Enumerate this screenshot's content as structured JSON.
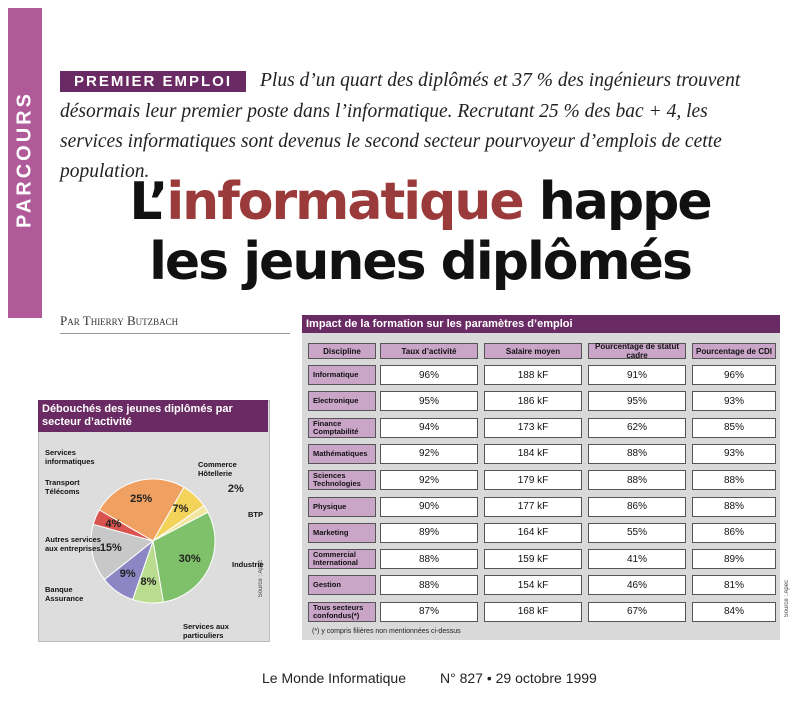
{
  "section": "PARCOURS",
  "kicker": "PREMIER EMPLOI",
  "intro": "Plus d’un quart des diplômés et 37 % des ingénieurs trouvent désormais leur premier poste dans l’informatique. Recrutant 25 % des bac + 4, les services informatiques sont devenus le second secteur pourvoyeur d’emplois de cette population.",
  "title": {
    "start": "L’",
    "highlight": "informatique",
    "end": "happe",
    "line2": "les jeunes diplômés"
  },
  "byline": "Par Thierry Butzbach",
  "chart_data": {
    "type": "pie",
    "title": "Débouchés des jeunes diplômés par secteur d’activité",
    "categories": [
      "Services informatiques",
      "Commerce Hôtellerie",
      "BTP",
      "Industrie",
      "Services aux particuliers",
      "Banque Assurance",
      "Autres services aux entreprises",
      "Transport Télécoms"
    ],
    "values": [
      25,
      7,
      2,
      30,
      8,
      9,
      15,
      4
    ],
    "value_labels": [
      "25%",
      "7%",
      "2%",
      "30%",
      "8%",
      "9%",
      "15%",
      "4%"
    ],
    "colors": [
      "#f0a060",
      "#f3d35a",
      "#f2e6a0",
      "#7ec16a",
      "#b9dc8f",
      "#8c86c4",
      "#c8c8c8",
      "#d9534f"
    ],
    "source": "Source : Apec"
  },
  "table": {
    "title": "Impact de la formation sur les paramètres d’emploi",
    "header": [
      "Discipline",
      "Taux d’activité",
      "Salaire moyen",
      "Pourcentage de statut cadre",
      "Pourcentage de CDI"
    ],
    "rows": [
      [
        "Informatique",
        "96%",
        "188 kF",
        "91%",
        "96%"
      ],
      [
        "Electronique",
        "95%",
        "186 kF",
        "95%",
        "93%"
      ],
      [
        "Finance Comptabilité",
        "94%",
        "173 kF",
        "62%",
        "85%"
      ],
      [
        "Mathématiques",
        "92%",
        "184 kF",
        "88%",
        "93%"
      ],
      [
        "Sciences Technologies",
        "92%",
        "179 kF",
        "88%",
        "88%"
      ],
      [
        "Physique",
        "90%",
        "177 kF",
        "86%",
        "88%"
      ],
      [
        "Marketing",
        "89%",
        "164 kF",
        "55%",
        "86%"
      ],
      [
        "Commercial International",
        "88%",
        "159 kF",
        "41%",
        "89%"
      ],
      [
        "Gestion",
        "88%",
        "154 kF",
        "46%",
        "81%"
      ],
      [
        "Tous secteurs confondus(*)",
        "87%",
        "168 kF",
        "67%",
        "84%"
      ]
    ],
    "footnote": "(*) y compris filières non mentionnées ci-dessus",
    "source": "Source : Apec"
  },
  "footer": {
    "publication": "Le Monde Informatique",
    "issue": "N° 827 • 29 octobre 1999"
  }
}
